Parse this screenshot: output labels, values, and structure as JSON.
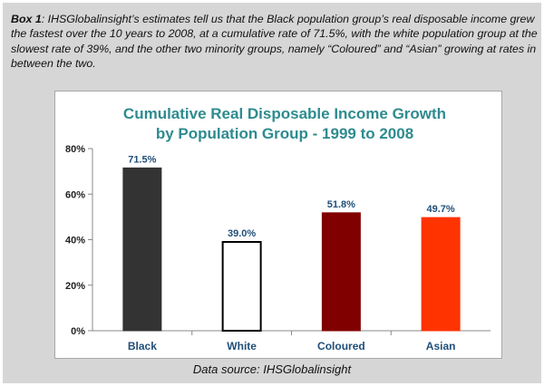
{
  "caption": {
    "lead": "Box 1",
    "text": ": IHSGlobalinsight’s estimates tell us that the Black population group’s real disposable income grew the fastest over the 10 years to 2008, at a cumulative rate of 71.5%, with the white population group at the slowest rate of 39%, and the other two minority groups, namely “Coloured” and “Asian” growing at rates in between the two."
  },
  "source": "Data source: IHSGlobalinsight",
  "colors": {
    "title": "#2e8b8f",
    "axis": "#888888"
  },
  "chart_data": {
    "type": "bar",
    "title_lines": [
      "Cumulative Real Disposable Income Growth",
      "by Population Group - 1999 to 2008"
    ],
    "categories": [
      "Black",
      "White",
      "Coloured",
      "Asian"
    ],
    "values": [
      71.5,
      39.0,
      51.8,
      49.7
    ],
    "data_labels": [
      "71.5%",
      "39.0%",
      "51.8%",
      "49.7%"
    ],
    "bar_colors": [
      "#333333",
      "#ffffff",
      "#800000",
      "#ff3300"
    ],
    "bar_outlines": [
      "#333333",
      "#000000",
      "#800000",
      "#ff3300"
    ],
    "ylim": [
      0,
      80
    ],
    "yticks": [
      0,
      20,
      40,
      60,
      80
    ],
    "ytick_labels": [
      "0%",
      "20%",
      "40%",
      "60%",
      "80%"
    ],
    "xlabel": "",
    "ylabel": "",
    "grid": false,
    "legend": "none"
  }
}
